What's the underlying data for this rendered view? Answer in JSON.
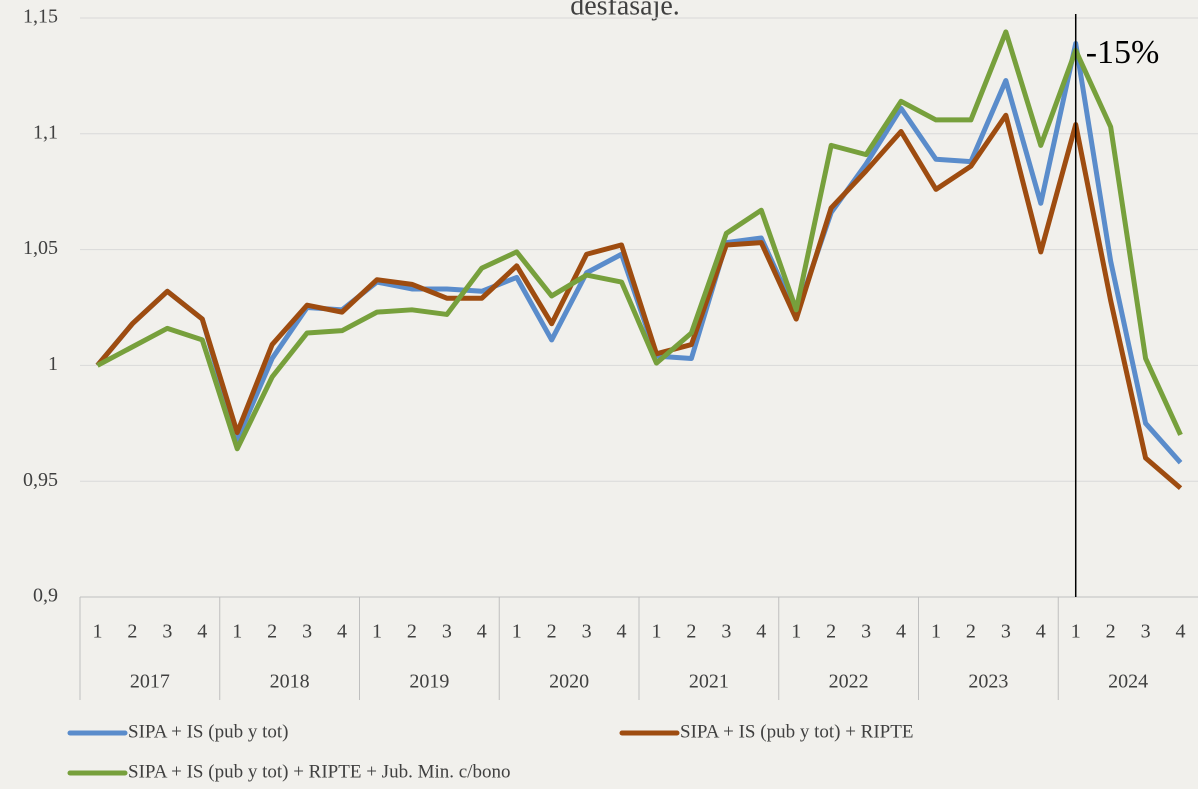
{
  "chart_data": {
    "type": "line",
    "title": "desfasaje.",
    "categories": [
      "1",
      "2",
      "3",
      "4",
      "1",
      "2",
      "3",
      "4",
      "1",
      "2",
      "3",
      "4",
      "1",
      "2",
      "3",
      "4",
      "1",
      "2",
      "3",
      "4",
      "1",
      "2",
      "3",
      "4",
      "1",
      "2",
      "3",
      "4",
      "1",
      "2",
      "3",
      "4"
    ],
    "category_groups": [
      "2017",
      "2018",
      "2019",
      "2020",
      "2021",
      "2022",
      "2023",
      "2024"
    ],
    "series": [
      {
        "name": "SIPA + IS (pub y tot)",
        "color": "#5a8ccb",
        "values": [
          1,
          1.018,
          1.032,
          1.02,
          0.968,
          1.003,
          1.025,
          1.024,
          1.036,
          1.033,
          1.033,
          1.032,
          1.038,
          1.011,
          1.04,
          1.048,
          1.004,
          1.003,
          1.053,
          1.055,
          1.022,
          1.066,
          1.087,
          1.111,
          1.089,
          1.088,
          1.123,
          1.07,
          1.139,
          1.045,
          0.975,
          0.958
        ]
      },
      {
        "name": "SIPA + IS (pub y tot) + RIPTE",
        "color": "#9e4c10",
        "values": [
          1,
          1.018,
          1.032,
          1.02,
          0.971,
          1.009,
          1.026,
          1.023,
          1.037,
          1.035,
          1.029,
          1.029,
          1.043,
          1.018,
          1.048,
          1.052,
          1.005,
          1.009,
          1.052,
          1.053,
          1.02,
          1.068,
          1.084,
          1.101,
          1.076,
          1.086,
          1.108,
          1.049,
          1.104,
          1.028,
          0.96,
          0.947
        ]
      },
      {
        "name": "SIPA + IS (pub y tot) + RIPTE + Jub. Min. c/bono",
        "color": "#77a03c",
        "values": [
          1,
          1.008,
          1.016,
          1.011,
          0.964,
          0.995,
          1.014,
          1.015,
          1.023,
          1.024,
          1.022,
          1.042,
          1.049,
          1.03,
          1.039,
          1.036,
          1.001,
          1.014,
          1.057,
          1.067,
          1.024,
          1.095,
          1.091,
          1.114,
          1.106,
          1.106,
          1.144,
          1.095,
          1.136,
          1.103,
          1.003,
          0.97
        ]
      }
    ],
    "ylim": [
      0.9,
      1.15
    ],
    "yticks": [
      {
        "value": 0.9,
        "label": "0,9"
      },
      {
        "value": 0.95,
        "label": "0,95"
      },
      1,
      {
        "value": 1.05,
        "label": "1,05"
      },
      {
        "value": 1.1,
        "label": "1,1"
      },
      {
        "value": 1.15,
        "label": "1,15"
      }
    ],
    "grid": true,
    "annotations": [
      {
        "text": "-15%",
        "x": 28
      }
    ]
  }
}
